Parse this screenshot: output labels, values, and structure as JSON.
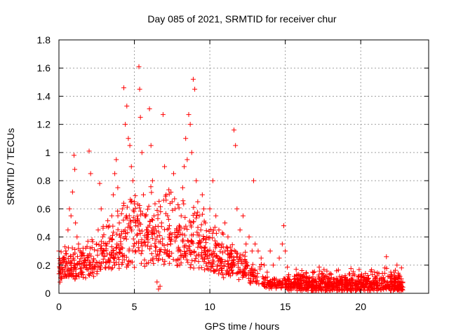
{
  "chart_data": {
    "type": "scatter",
    "title": "Day 085 of 2021, SRMTID for receiver chur",
    "xlabel": "GPS time / hours",
    "ylabel": "SRMTID / TECUs",
    "xlim": [
      0,
      24.5
    ],
    "ylim": [
      0,
      1.8
    ],
    "xticks": [
      0,
      5,
      10,
      15,
      20
    ],
    "yticks": [
      0,
      0.2,
      0.4,
      0.6,
      0.8,
      1,
      1.2,
      1.4,
      1.6,
      1.8
    ],
    "xtick_labels": [
      "0",
      "5",
      "10",
      "15",
      "20"
    ],
    "ytick_labels": [
      "0",
      "0.2",
      "0.4",
      "0.6",
      "0.8",
      "1",
      "1.2",
      "1.4",
      "1.6",
      "1.8"
    ],
    "grid": true,
    "marker": "+",
    "color": "#ff0000",
    "series": [
      {
        "name": "SRMTID",
        "points": [
          [
            0.0,
            0.3
          ],
          [
            0.1,
            0.22
          ],
          [
            0.2,
            0.18
          ],
          [
            0.3,
            0.25
          ],
          [
            0.4,
            0.33
          ],
          [
            0.5,
            0.28
          ],
          [
            0.6,
            0.45
          ],
          [
            0.7,
            0.6
          ],
          [
            0.8,
            0.55
          ],
          [
            0.9,
            0.72
          ],
          [
            1.0,
            0.98
          ],
          [
            1.05,
            0.88
          ],
          [
            1.1,
            0.5
          ],
          [
            1.2,
            0.4
          ],
          [
            1.3,
            0.35
          ],
          [
            1.4,
            0.3
          ],
          [
            1.5,
            0.27
          ],
          [
            1.6,
            0.32
          ],
          [
            1.7,
            0.22
          ],
          [
            1.8,
            0.18
          ],
          [
            1.9,
            0.25
          ],
          [
            2.0,
            1.01
          ],
          [
            2.1,
            0.85
          ],
          [
            2.2,
            0.15
          ],
          [
            2.3,
            0.12
          ],
          [
            2.4,
            0.2
          ],
          [
            2.5,
            0.35
          ],
          [
            2.6,
            0.45
          ],
          [
            2.7,
            0.78
          ],
          [
            2.8,
            0.6
          ],
          [
            2.9,
            0.4
          ],
          [
            3.0,
            0.3
          ],
          [
            3.1,
            0.22
          ],
          [
            3.2,
            0.28
          ],
          [
            3.3,
            0.18
          ],
          [
            3.4,
            0.25
          ],
          [
            3.5,
            0.55
          ],
          [
            3.6,
            0.7
          ],
          [
            3.7,
            0.85
          ],
          [
            3.8,
            0.95
          ],
          [
            3.9,
            0.75
          ],
          [
            4.0,
            0.5
          ],
          [
            4.1,
            0.35
          ],
          [
            4.2,
            0.6
          ],
          [
            4.3,
            1.46
          ],
          [
            4.4,
            1.2
          ],
          [
            4.5,
            1.33
          ],
          [
            4.6,
            1.1
          ],
          [
            4.7,
            1.05
          ],
          [
            4.8,
            0.9
          ],
          [
            4.9,
            0.8
          ],
          [
            5.0,
            0.65
          ],
          [
            5.1,
            0.5
          ],
          [
            5.2,
            0.42
          ],
          [
            5.3,
            1.61
          ],
          [
            5.35,
            1.45
          ],
          [
            5.4,
            1.25
          ],
          [
            5.5,
            1.0
          ],
          [
            5.6,
            0.7
          ],
          [
            5.7,
            0.55
          ],
          [
            5.8,
            0.45
          ],
          [
            5.9,
            0.38
          ],
          [
            6.0,
            1.31
          ],
          [
            6.1,
            1.05
          ],
          [
            6.2,
            0.8
          ],
          [
            6.3,
            0.55
          ],
          [
            6.4,
            0.3
          ],
          [
            6.5,
            0.08
          ],
          [
            6.6,
            0.03
          ],
          [
            6.7,
            0.05
          ],
          [
            6.8,
            0.5
          ],
          [
            6.9,
            1.27
          ],
          [
            7.0,
            0.9
          ],
          [
            7.1,
            0.7
          ],
          [
            7.2,
            0.55
          ],
          [
            7.3,
            0.4
          ],
          [
            7.4,
            0.35
          ],
          [
            7.5,
            0.65
          ],
          [
            7.6,
            0.85
          ],
          [
            7.7,
            0.6
          ],
          [
            7.8,
            0.45
          ],
          [
            7.9,
            0.3
          ],
          [
            8.0,
            0.2
          ],
          [
            8.1,
            0.55
          ],
          [
            8.2,
            0.75
          ],
          [
            8.3,
            0.9
          ],
          [
            8.4,
            1.1
          ],
          [
            8.5,
            0.95
          ],
          [
            8.6,
            1.27
          ],
          [
            8.7,
            1.2
          ],
          [
            8.8,
            1.0
          ],
          [
            8.9,
            1.52
          ],
          [
            9.0,
            1.45
          ],
          [
            9.1,
            0.8
          ],
          [
            9.2,
            0.65
          ],
          [
            9.3,
            0.55
          ],
          [
            9.4,
            0.45
          ],
          [
            9.5,
            0.7
          ],
          [
            9.6,
            0.6
          ],
          [
            9.7,
            0.5
          ],
          [
            9.8,
            0.4
          ],
          [
            9.9,
            0.3
          ],
          [
            10.0,
            0.6
          ],
          [
            10.2,
            0.8
          ],
          [
            10.4,
            0.55
          ],
          [
            10.6,
            0.45
          ],
          [
            10.8,
            0.35
          ],
          [
            11.0,
            0.5
          ],
          [
            11.2,
            0.4
          ],
          [
            11.4,
            0.3
          ],
          [
            11.6,
            1.16
          ],
          [
            11.7,
            1.05
          ],
          [
            11.8,
            0.6
          ],
          [
            12.0,
            0.45
          ],
          [
            12.2,
            0.55
          ],
          [
            12.4,
            0.35
          ],
          [
            12.6,
            0.4
          ],
          [
            12.8,
            0.3
          ],
          [
            12.9,
            0.8
          ],
          [
            13.0,
            0.35
          ],
          [
            13.2,
            0.3
          ],
          [
            13.4,
            0.25
          ],
          [
            13.6,
            0.2
          ],
          [
            13.8,
            0.15
          ],
          [
            14.0,
            0.3
          ],
          [
            14.2,
            0.2
          ],
          [
            14.4,
            0.1
          ],
          [
            14.6,
            0.25
          ],
          [
            14.8,
            0.35
          ],
          [
            14.9,
            0.48
          ],
          [
            15.0,
            0.3
          ],
          [
            15.2,
            0.12
          ],
          [
            15.4,
            0.08
          ],
          [
            15.6,
            0.06
          ],
          [
            15.8,
            0.1
          ],
          [
            16.0,
            0.07
          ],
          [
            16.2,
            0.09
          ],
          [
            16.4,
            0.12
          ],
          [
            16.6,
            0.08
          ],
          [
            16.8,
            0.15
          ],
          [
            17.0,
            0.1
          ],
          [
            17.2,
            0.13
          ],
          [
            17.4,
            0.09
          ],
          [
            17.6,
            0.11
          ],
          [
            17.8,
            0.08
          ],
          [
            18.0,
            0.14
          ],
          [
            18.2,
            0.1
          ],
          [
            18.4,
            0.16
          ],
          [
            18.6,
            0.12
          ],
          [
            18.8,
            0.09
          ],
          [
            19.0,
            0.11
          ],
          [
            19.2,
            0.08
          ],
          [
            19.4,
            0.1
          ],
          [
            19.6,
            0.13
          ],
          [
            19.8,
            0.09
          ],
          [
            20.0,
            0.12
          ],
          [
            20.2,
            0.08
          ],
          [
            20.4,
            0.1
          ],
          [
            20.6,
            0.07
          ],
          [
            20.8,
            0.09
          ],
          [
            21.0,
            0.11
          ],
          [
            21.2,
            0.14
          ],
          [
            21.4,
            0.1
          ],
          [
            21.6,
            0.18
          ],
          [
            21.7,
            0.26
          ],
          [
            21.8,
            0.12
          ],
          [
            22.0,
            0.08
          ],
          [
            22.2,
            0.15
          ],
          [
            22.4,
            0.2
          ],
          [
            22.6,
            0.12
          ],
          [
            22.7,
            0.18
          ]
        ]
      }
    ],
    "dense_clusters": [
      {
        "x_range": [
          0.0,
          15.0
        ],
        "y_range": [
          0.05,
          0.9
        ],
        "count": 900
      },
      {
        "x_range": [
          15.0,
          22.8
        ],
        "y_range": [
          0.03,
          0.2
        ],
        "count": 700
      }
    ]
  }
}
